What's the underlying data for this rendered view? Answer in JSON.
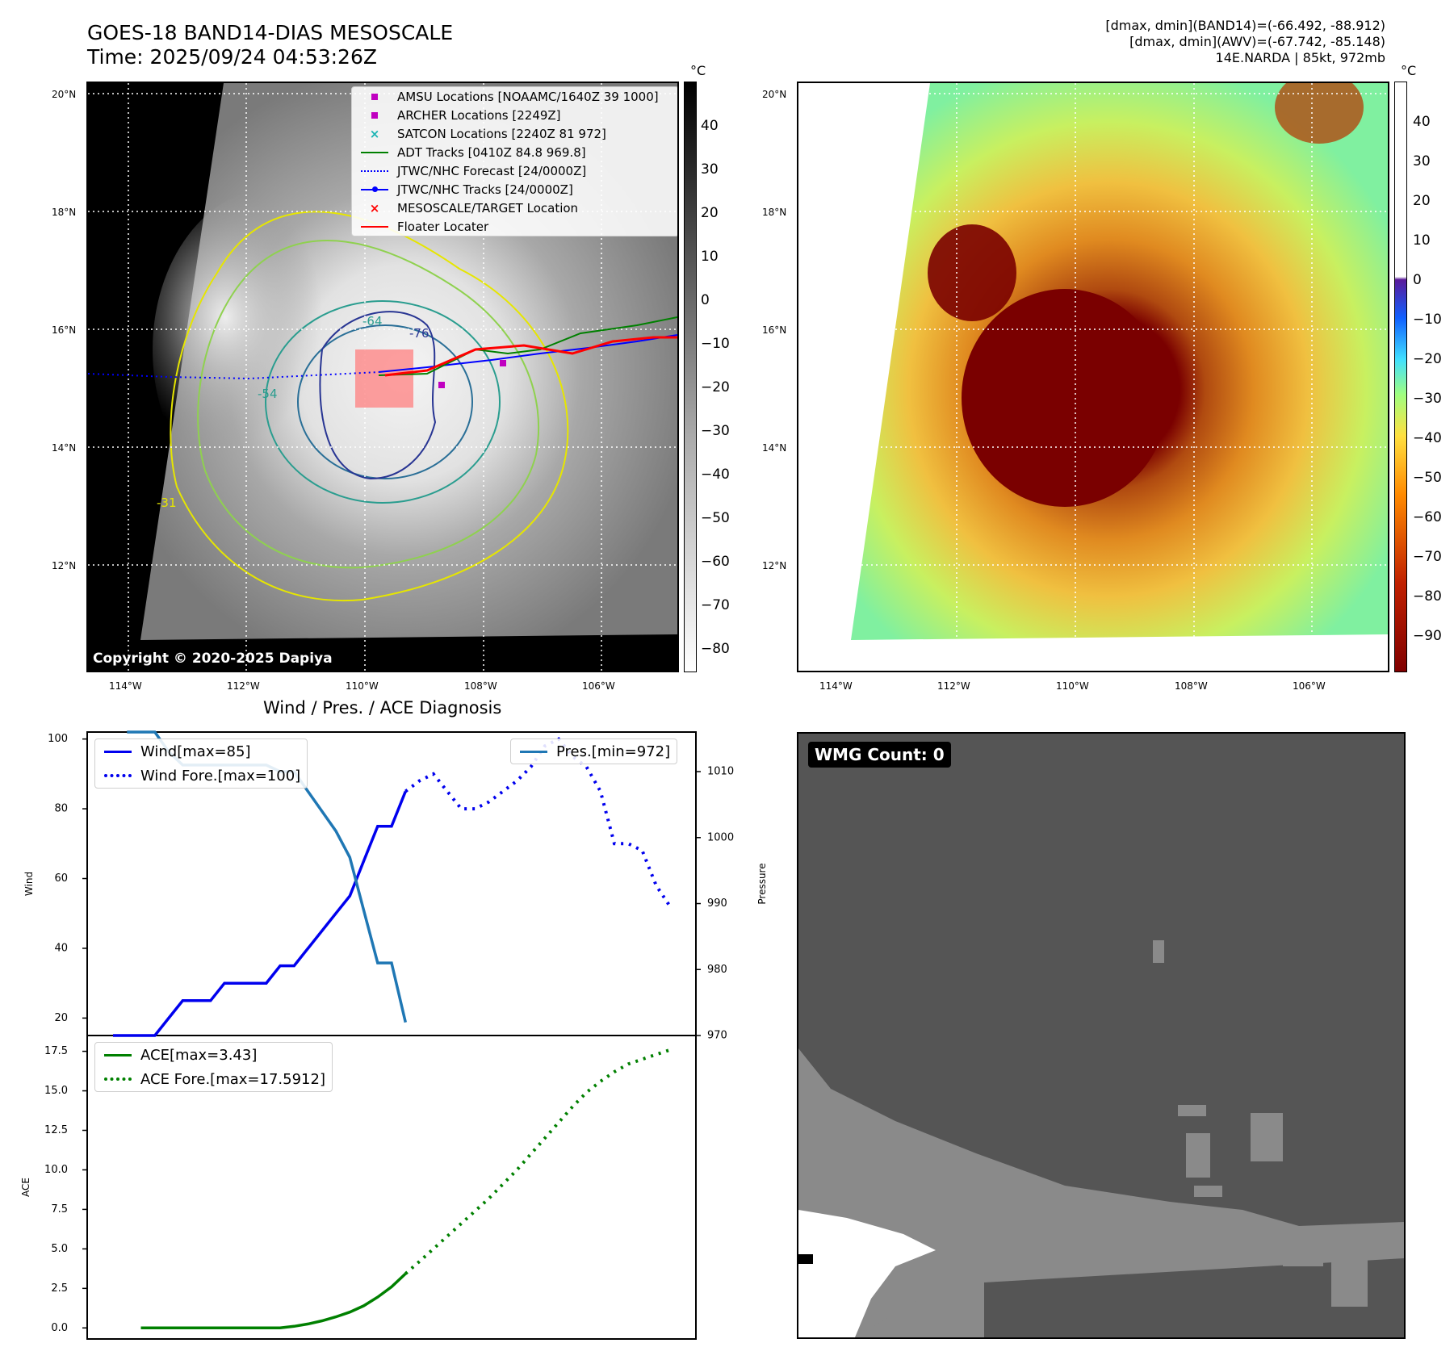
{
  "header": {
    "title_line1": "GOES-18 BAND14-DIAS MESOSCALE",
    "title_line2": "Time: 2025/09/24 04:53:26Z",
    "info_line1": "[dmax, dmin](BAND14)=(-66.492, -88.912)",
    "info_line2": "[dmax, dmin](AWV)=(-67.742, -85.148)",
    "info_line3": "14E.NARDA | 85kt, 972mb"
  },
  "maps": {
    "lat_labels": [
      "20°N",
      "18°N",
      "16°N",
      "14°N",
      "12°N"
    ],
    "lon_labels": [
      "114°W",
      "112°W",
      "110°W",
      "108°W",
      "106°W"
    ],
    "copyright": "Copyright © 2020-2025 Dapiya",
    "contour_labels": [
      "-76",
      "-64",
      "-54",
      "-31",
      "-76",
      "-64"
    ],
    "colorbar_unit": "°C",
    "colorbar1_ticks": [
      "40",
      "30",
      "20",
      "10",
      "0",
      "−10",
      "−20",
      "−30",
      "−40",
      "−50",
      "−60",
      "−70",
      "−80"
    ],
    "colorbar2_ticks": [
      "40",
      "30",
      "20",
      "10",
      "0",
      "−10",
      "−20",
      "−30",
      "−40",
      "−50",
      "−60",
      "−70",
      "−80",
      "−90"
    ],
    "legend": [
      {
        "label": "AMSU Locations [NOAAMC/1640Z 39 1000]",
        "symbol": "square",
        "color": "#c000c0"
      },
      {
        "label": "ARCHER Locations [2249Z]",
        "symbol": "square",
        "color": "#c000c0"
      },
      {
        "label": "SATCON Locations [2240Z 81 972]",
        "symbol": "x",
        "color": "#19b3b3"
      },
      {
        "label": "ADT Tracks [0410Z 84.8 969.8]",
        "symbol": "line",
        "color": "#008000"
      },
      {
        "label": "JTWC/NHC Forecast [24/0000Z]",
        "symbol": "dotted",
        "color": "#0000ff"
      },
      {
        "label": "JTWC/NHC Tracks [24/0000Z]",
        "symbol": "line-dot",
        "color": "#0000ff"
      },
      {
        "label": "MESOSCALE/TARGET Location",
        "symbol": "x",
        "color": "#ff0000"
      },
      {
        "label": "Floater Locater",
        "symbol": "line",
        "color": "#ff0000"
      }
    ]
  },
  "chart_data": [
    {
      "type": "line",
      "title": "Wind / Pres. / ACE Diagnosis",
      "ylabel": "Wind",
      "ylabel_right": "Pressure",
      "ylim": [
        15,
        102
      ],
      "ylim_right": [
        970,
        1016
      ],
      "yticks": [
        "100",
        "80",
        "60",
        "40",
        "20"
      ],
      "yticks_right": [
        "1010",
        "1000",
        "990",
        "980",
        "970"
      ],
      "x": [
        0,
        1,
        2,
        3,
        4,
        5,
        6,
        7,
        8,
        9,
        10,
        11,
        12,
        13,
        14,
        15,
        16,
        17,
        18,
        19,
        20,
        21,
        22,
        23,
        24,
        25,
        26,
        27,
        28,
        29,
        30,
        31,
        32,
        33,
        34,
        35,
        36,
        37,
        38,
        39,
        40
      ],
      "series": [
        {
          "name": "Wind[max=85]",
          "style": "solid",
          "color": "#0000ee",
          "x": [
            0,
            1,
            2,
            3,
            4,
            5,
            6,
            7,
            8,
            9,
            10,
            11,
            12,
            13,
            14,
            15,
            16,
            17,
            18,
            19,
            20,
            21
          ],
          "values": [
            15,
            15,
            15,
            15,
            20,
            25,
            25,
            25,
            30,
            30,
            30,
            30,
            35,
            35,
            40,
            45,
            50,
            55,
            65,
            75,
            75,
            85
          ]
        },
        {
          "name": "Wind Fore.[max=100]",
          "style": "dotted",
          "color": "#0000ee",
          "x": [
            21,
            22,
            23,
            24,
            25,
            26,
            27,
            28,
            29,
            30,
            31,
            32,
            33,
            34,
            35,
            36,
            37,
            38,
            39,
            40
          ],
          "values": [
            85,
            88,
            90,
            85,
            80,
            80,
            82,
            85,
            88,
            92,
            98,
            100,
            95,
            92,
            85,
            70,
            70,
            68,
            58,
            52
          ]
        },
        {
          "name": "Pres.[min=972]",
          "style": "solid",
          "color": "#1f77b4",
          "axis": "right",
          "x": [
            1,
            2,
            3,
            4,
            5,
            6,
            7,
            8,
            9,
            10,
            11,
            12,
            13,
            14,
            15,
            16,
            17,
            18,
            19,
            20,
            21
          ],
          "values": [
            1016,
            1016,
            1016,
            1013,
            1011,
            1011,
            1011,
            1011,
            1011,
            1011,
            1011,
            1010,
            1010,
            1007,
            1004,
            1001,
            997,
            989,
            981,
            981,
            972
          ]
        }
      ]
    },
    {
      "type": "line",
      "ylabel": "ACE",
      "ylim": [
        -0.7,
        18.5
      ],
      "yticks": [
        "17.5",
        "15.0",
        "12.5",
        "10.0",
        "7.5",
        "5.0",
        "2.5",
        "0.0"
      ],
      "series": [
        {
          "name": "ACE[max=3.43]",
          "style": "solid",
          "color": "#008000",
          "x": [
            2,
            4,
            6,
            8,
            10,
            12,
            13,
            14,
            15,
            16,
            17,
            18,
            19,
            20,
            21
          ],
          "values": [
            0,
            0,
            0,
            0,
            0,
            0,
            0.1,
            0.25,
            0.45,
            0.7,
            1.0,
            1.4,
            1.95,
            2.6,
            3.43
          ]
        },
        {
          "name": "ACE Fore.[max=17.5912]",
          "style": "dotted",
          "color": "#008000",
          "x": [
            21,
            22,
            23,
            24,
            25,
            26,
            27,
            28,
            29,
            30,
            31,
            32,
            33,
            34,
            35,
            36,
            37,
            38,
            39,
            40
          ],
          "values": [
            3.43,
            4.2,
            5.0,
            5.8,
            6.6,
            7.4,
            8.2,
            9.1,
            10.0,
            11.0,
            12.0,
            13.0,
            14.0,
            14.9,
            15.6,
            16.2,
            16.7,
            17.0,
            17.3,
            17.59
          ]
        }
      ]
    }
  ],
  "wmg": {
    "label": "WMG Count: 0"
  }
}
